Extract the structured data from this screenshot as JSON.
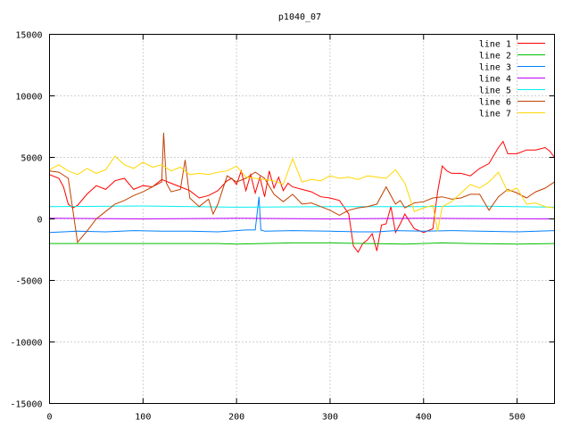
{
  "chart_data": {
    "type": "line",
    "title": "p1040_07",
    "xlabel": "",
    "ylabel": "",
    "xlim": [
      0,
      540
    ],
    "ylim": [
      -15000,
      15000
    ],
    "x_ticks": [
      "0",
      "100",
      "200",
      "300",
      "400",
      "500"
    ],
    "y_ticks": [
      "15000",
      "10000",
      "5000",
      "0",
      "-5000",
      "-10000",
      "-15000"
    ],
    "grid": true,
    "legend_position": "top-right",
    "series": [
      {
        "name": "line 1",
        "color": "#ff0000",
        "x": [
          0,
          10,
          15,
          20,
          25,
          30,
          40,
          50,
          60,
          70,
          80,
          90,
          100,
          110,
          120,
          130,
          140,
          150,
          160,
          170,
          180,
          190,
          195,
          200,
          205,
          210,
          215,
          220,
          225,
          230,
          235,
          240,
          245,
          250,
          255,
          260,
          270,
          280,
          290,
          300,
          310,
          320,
          325,
          330,
          335,
          340,
          345,
          350,
          355,
          360,
          365,
          370,
          375,
          380,
          390,
          400,
          410,
          415,
          420,
          425,
          430,
          440,
          450,
          460,
          470,
          480,
          485,
          490,
          500,
          510,
          520,
          530,
          535,
          540
        ],
        "y": [
          3600,
          3300,
          2600,
          1200,
          900,
          1100,
          2000,
          2700,
          2400,
          3100,
          3300,
          2400,
          2700,
          2600,
          3200,
          2900,
          2600,
          2300,
          1700,
          1900,
          2300,
          3100,
          3300,
          2800,
          3900,
          2300,
          3600,
          2100,
          3400,
          1800,
          3900,
          2500,
          3400,
          2300,
          2900,
          2600,
          2400,
          2200,
          1800,
          1700,
          1500,
          400,
          -2200,
          -2700,
          -2000,
          -1700,
          -1200,
          -2600,
          -500,
          -400,
          1000,
          -1100,
          -400,
          400,
          -800,
          -1100,
          -800,
          2200,
          4300,
          3900,
          3700,
          3700,
          3500,
          4100,
          4500,
          5800,
          6300,
          5300,
          5300,
          5600,
          5600,
          5800,
          5500,
          5000
        ]
      },
      {
        "name": "line 2",
        "color": "#00c000",
        "x": [
          0,
          100,
          180,
          200,
          260,
          300,
          380,
          420,
          450,
          500,
          540
        ],
        "y": [
          -2000,
          -2000,
          -2000,
          -2050,
          -1950,
          -1950,
          -2050,
          -1950,
          -2000,
          -2050,
          -2000
        ]
      },
      {
        "name": "line 3",
        "color": "#0080ff",
        "x": [
          0,
          30,
          60,
          90,
          120,
          150,
          180,
          210,
          220,
          224,
          226,
          230,
          260,
          300,
          330,
          350,
          370,
          400,
          430,
          460,
          500,
          540
        ],
        "y": [
          -1100,
          -1000,
          -1050,
          -950,
          -1000,
          -1000,
          -1050,
          -900,
          -900,
          1800,
          -900,
          -1000,
          -950,
          -1000,
          -1050,
          -1050,
          -950,
          -1000,
          -950,
          -1000,
          -1050,
          -950
        ]
      },
      {
        "name": "line 4",
        "color": "#c000ff",
        "x": [
          0,
          100,
          200,
          300,
          400,
          540
        ],
        "y": [
          50,
          0,
          50,
          0,
          50,
          0
        ]
      },
      {
        "name": "line 5",
        "color": "#00eeee",
        "x": [
          0,
          100,
          200,
          300,
          400,
          450,
          500,
          540
        ],
        "y": [
          1000,
          1050,
          950,
          1000,
          1000,
          1050,
          1000,
          950
        ]
      },
      {
        "name": "line 6",
        "color": "#c04000",
        "x": [
          0,
          10,
          20,
          30,
          40,
          50,
          60,
          70,
          80,
          90,
          100,
          110,
          120,
          122,
          125,
          130,
          140,
          145,
          150,
          160,
          170,
          175,
          180,
          190,
          200,
          210,
          220,
          230,
          240,
          250,
          260,
          270,
          280,
          290,
          300,
          310,
          320,
          330,
          340,
          350,
          360,
          370,
          375,
          380,
          390,
          400,
          410,
          420,
          430,
          440,
          450,
          460,
          470,
          480,
          490,
          500,
          510,
          520,
          530,
          540
        ],
        "y": [
          3900,
          3800,
          3300,
          -1900,
          -1000,
          0,
          600,
          1200,
          1500,
          1900,
          2200,
          2600,
          3000,
          7000,
          2900,
          2200,
          2400,
          4800,
          1700,
          1000,
          1600,
          400,
          1200,
          3500,
          3000,
          3300,
          3800,
          3300,
          2000,
          1400,
          2000,
          1200,
          1300,
          1000,
          700,
          300,
          700,
          900,
          1000,
          1200,
          2600,
          1200,
          1500,
          900,
          1300,
          1400,
          1700,
          1800,
          1600,
          1700,
          2000,
          2000,
          700,
          1800,
          2400,
          2100,
          1700,
          2200,
          2500,
          3000
        ]
      },
      {
        "name": "line 7",
        "color": "#ffd700",
        "x": [
          0,
          10,
          20,
          30,
          40,
          50,
          60,
          70,
          80,
          90,
          100,
          110,
          120,
          130,
          140,
          150,
          160,
          170,
          180,
          190,
          200,
          210,
          220,
          230,
          240,
          250,
          260,
          270,
          280,
          290,
          300,
          310,
          320,
          330,
          340,
          350,
          360,
          370,
          380,
          390,
          400,
          410,
          415,
          420,
          430,
          440,
          450,
          460,
          470,
          480,
          490,
          500,
          510,
          520,
          530,
          540
        ],
        "y": [
          4000,
          4400,
          3900,
          3600,
          4100,
          3700,
          4000,
          5100,
          4400,
          4100,
          4600,
          4200,
          4400,
          3900,
          4200,
          3600,
          3700,
          3600,
          3800,
          3900,
          4300,
          3400,
          3300,
          3200,
          3100,
          2800,
          4900,
          3000,
          3200,
          3100,
          3500,
          3300,
          3400,
          3200,
          3500,
          3400,
          3300,
          4000,
          2900,
          600,
          900,
          1100,
          -1000,
          1000,
          1400,
          2100,
          2800,
          2500,
          3000,
          3800,
          2200,
          2500,
          1200,
          1300,
          1000,
          900
        ]
      }
    ]
  }
}
